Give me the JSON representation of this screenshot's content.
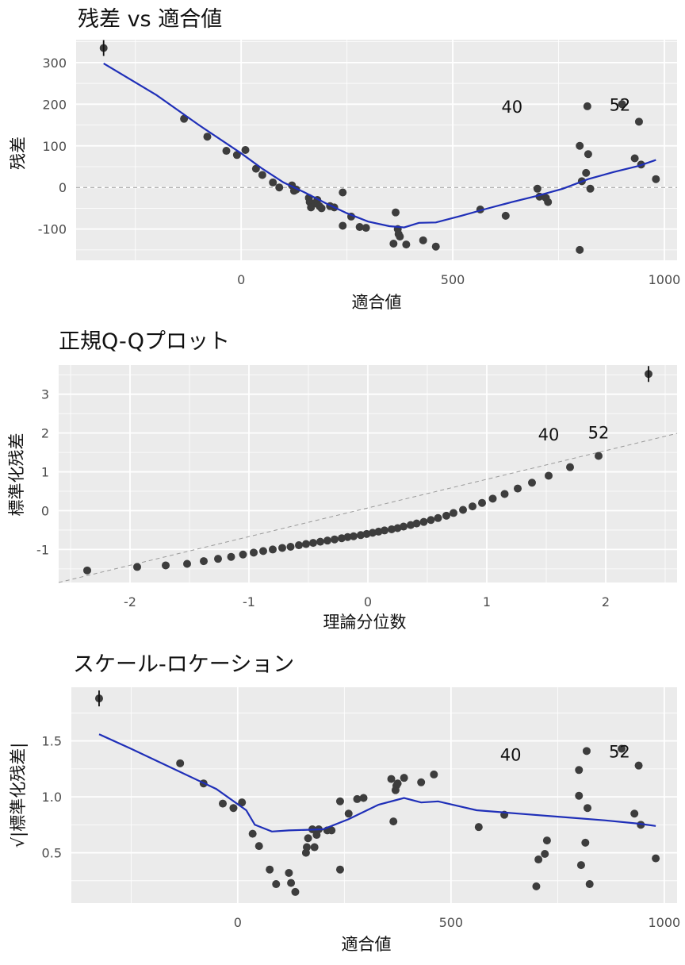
{
  "colors": {
    "panel_background": "#ebebeb",
    "gridline": "#ffffff",
    "point": "#3d3d3d",
    "smooth_line": "#1f2fb8",
    "reference_line": "#9a9a9a",
    "text": "#111111",
    "tick_text": "#4d4d4d"
  },
  "chart_data": [
    {
      "id": "residuals-vs-fitted",
      "type": "scatter",
      "title": "残差 vs 適合値",
      "xlabel": "適合値",
      "ylabel": "残差",
      "xlim": [
        -390,
        1030
      ],
      "ylim": [
        -175,
        355
      ],
      "xticks": [
        0,
        500,
        1000
      ],
      "yticks": [
        -100,
        0,
        100,
        200,
        300
      ],
      "grid": true,
      "reference_line": {
        "type": "horizontal",
        "y": 0,
        "style": "dashed"
      },
      "points": [
        [
          -325,
          335
        ],
        [
          -135,
          165
        ],
        [
          -80,
          122
        ],
        [
          -35,
          88
        ],
        [
          -10,
          78
        ],
        [
          10,
          90
        ],
        [
          35,
          45
        ],
        [
          50,
          30
        ],
        [
          75,
          12
        ],
        [
          90,
          0
        ],
        [
          120,
          5
        ],
        [
          125,
          -8
        ],
        [
          130,
          -5
        ],
        [
          160,
          -25
        ],
        [
          162,
          -35
        ],
        [
          165,
          -48
        ],
        [
          175,
          -38
        ],
        [
          180,
          -30
        ],
        [
          185,
          -45
        ],
        [
          190,
          -50
        ],
        [
          210,
          -45
        ],
        [
          220,
          -48
        ],
        [
          240,
          -12
        ],
        [
          240,
          -92
        ],
        [
          260,
          -70
        ],
        [
          280,
          -95
        ],
        [
          295,
          -97
        ],
        [
          360,
          -135
        ],
        [
          365,
          -60
        ],
        [
          370,
          -100
        ],
        [
          372,
          -112
        ],
        [
          375,
          -118
        ],
        [
          390,
          -137
        ],
        [
          430,
          -127
        ],
        [
          460,
          -142
        ],
        [
          565,
          -53
        ],
        [
          625,
          -68
        ],
        [
          700,
          -3
        ],
        [
          705,
          -22
        ],
        [
          720,
          -25
        ],
        [
          725,
          -35
        ],
        [
          800,
          100
        ],
        [
          800,
          -150
        ],
        [
          805,
          15
        ],
        [
          815,
          35
        ],
        [
          818,
          195
        ],
        [
          820,
          80
        ],
        [
          825,
          -3
        ],
        [
          900,
          200
        ],
        [
          930,
          70
        ],
        [
          940,
          158
        ],
        [
          945,
          55
        ],
        [
          980,
          20
        ]
      ],
      "smooth_line": [
        [
          -325,
          298
        ],
        [
          -200,
          222
        ],
        [
          -100,
          150
        ],
        [
          0,
          82
        ],
        [
          50,
          45
        ],
        [
          100,
          12
        ],
        [
          150,
          -12
        ],
        [
          200,
          -38
        ],
        [
          250,
          -62
        ],
        [
          300,
          -82
        ],
        [
          350,
          -93
        ],
        [
          385,
          -96
        ],
        [
          420,
          -85
        ],
        [
          460,
          -84
        ],
        [
          520,
          -68
        ],
        [
          580,
          -51
        ],
        [
          640,
          -35
        ],
        [
          700,
          -20
        ],
        [
          760,
          -3
        ],
        [
          820,
          20
        ],
        [
          880,
          37
        ],
        [
          940,
          52
        ],
        [
          980,
          66
        ]
      ],
      "annotations": [
        {
          "label": "40",
          "x": 640,
          "y": 195
        },
        {
          "label": "52",
          "x": 895,
          "y": 200
        },
        {
          "label": "",
          "x": -325,
          "y": 335
        }
      ]
    },
    {
      "id": "normal-qq",
      "type": "scatter",
      "title": "正規Q-Qプロット",
      "xlabel": "理論分位数",
      "ylabel": "標準化残差",
      "xlim": [
        -2.6,
        2.6
      ],
      "ylim": [
        -1.85,
        3.75
      ],
      "xticks": [
        -2,
        -1,
        0,
        1,
        2
      ],
      "yticks": [
        -1,
        0,
        1,
        2,
        3
      ],
      "grid": true,
      "reference_line": {
        "type": "diagonal",
        "points": [
          [
            -2.6,
            -1.85
          ],
          [
            2.6,
            1.99
          ]
        ],
        "style": "dashed"
      },
      "points": [
        [
          -2.36,
          -1.54
        ],
        [
          -1.94,
          -1.45
        ],
        [
          -1.7,
          -1.41
        ],
        [
          -1.52,
          -1.37
        ],
        [
          -1.38,
          -1.3
        ],
        [
          -1.26,
          -1.24
        ],
        [
          -1.15,
          -1.19
        ],
        [
          -1.05,
          -1.13
        ],
        [
          -0.96,
          -1.08
        ],
        [
          -0.88,
          -1.04
        ],
        [
          -0.8,
          -1.0
        ],
        [
          -0.72,
          -0.96
        ],
        [
          -0.65,
          -0.93
        ],
        [
          -0.58,
          -0.89
        ],
        [
          -0.52,
          -0.86
        ],
        [
          -0.46,
          -0.83
        ],
        [
          -0.4,
          -0.8
        ],
        [
          -0.34,
          -0.77
        ],
        [
          -0.28,
          -0.74
        ],
        [
          -0.22,
          -0.71
        ],
        [
          -0.17,
          -0.68
        ],
        [
          -0.12,
          -0.66
        ],
        [
          -0.06,
          -0.63
        ],
        [
          -0.01,
          -0.6
        ],
        [
          0.04,
          -0.57
        ],
        [
          0.09,
          -0.54
        ],
        [
          0.14,
          -0.51
        ],
        [
          0.2,
          -0.48
        ],
        [
          0.25,
          -0.45
        ],
        [
          0.3,
          -0.41
        ],
        [
          0.36,
          -0.37
        ],
        [
          0.41,
          -0.33
        ],
        [
          0.47,
          -0.29
        ],
        [
          0.53,
          -0.24
        ],
        [
          0.59,
          -0.19
        ],
        [
          0.66,
          -0.13
        ],
        [
          0.72,
          -0.06
        ],
        [
          0.8,
          0.02
        ],
        [
          0.88,
          0.11
        ],
        [
          0.96,
          0.2
        ],
        [
          1.05,
          0.31
        ],
        [
          1.15,
          0.43
        ],
        [
          1.26,
          0.57
        ],
        [
          1.38,
          0.72
        ],
        [
          1.52,
          0.9
        ],
        [
          1.7,
          1.12
        ],
        [
          1.94,
          1.41
        ],
        [
          2.36,
          3.52
        ]
      ],
      "annotations": [
        {
          "label": "40",
          "x": 1.52,
          "y": 1.97
        },
        {
          "label": "52",
          "x": 1.94,
          "y": 2.02
        },
        {
          "label": "",
          "x": 2.36,
          "y": 3.52
        }
      ]
    },
    {
      "id": "scale-location",
      "type": "scatter",
      "title": "スケール-ロケーション",
      "xlabel": "適合値",
      "ylabel": "√|標準化残差|",
      "xlim": [
        -390,
        1030
      ],
      "ylim": [
        0.05,
        1.98
      ],
      "xticks": [
        0,
        500,
        1000
      ],
      "yticks": [
        0.5,
        1.0,
        1.5
      ],
      "grid": true,
      "points": [
        [
          -325,
          1.88
        ],
        [
          -135,
          1.3
        ],
        [
          -80,
          1.12
        ],
        [
          -35,
          0.94
        ],
        [
          -10,
          0.9
        ],
        [
          10,
          0.95
        ],
        [
          35,
          0.67
        ],
        [
          50,
          0.56
        ],
        [
          75,
          0.35
        ],
        [
          90,
          0.22
        ],
        [
          120,
          0.32
        ],
        [
          125,
          0.23
        ],
        [
          135,
          0.15
        ],
        [
          160,
          0.5
        ],
        [
          162,
          0.55
        ],
        [
          165,
          0.63
        ],
        [
          175,
          0.71
        ],
        [
          180,
          0.55
        ],
        [
          185,
          0.66
        ],
        [
          190,
          0.71
        ],
        [
          210,
          0.7
        ],
        [
          220,
          0.7
        ],
        [
          240,
          0.35
        ],
        [
          240,
          0.96
        ],
        [
          260,
          0.85
        ],
        [
          280,
          0.98
        ],
        [
          295,
          0.99
        ],
        [
          360,
          1.16
        ],
        [
          365,
          0.78
        ],
        [
          370,
          1.06
        ],
        [
          372,
          1.1
        ],
        [
          375,
          1.12
        ],
        [
          390,
          1.17
        ],
        [
          430,
          1.13
        ],
        [
          460,
          1.2
        ],
        [
          565,
          0.73
        ],
        [
          625,
          0.84
        ],
        [
          700,
          0.2
        ],
        [
          705,
          0.44
        ],
        [
          720,
          0.49
        ],
        [
          725,
          0.61
        ],
        [
          800,
          1.01
        ],
        [
          800,
          1.24
        ],
        [
          805,
          0.39
        ],
        [
          815,
          0.59
        ],
        [
          818,
          1.41
        ],
        [
          820,
          0.9
        ],
        [
          825,
          0.22
        ],
        [
          900,
          1.43
        ],
        [
          930,
          0.85
        ],
        [
          940,
          1.28
        ],
        [
          945,
          0.75
        ],
        [
          980,
          0.45
        ]
      ],
      "smooth_line": [
        [
          -325,
          1.56
        ],
        [
          -250,
          1.43
        ],
        [
          -150,
          1.25
        ],
        [
          -50,
          1.07
        ],
        [
          20,
          0.88
        ],
        [
          40,
          0.75
        ],
        [
          80,
          0.69
        ],
        [
          120,
          0.7
        ],
        [
          200,
          0.71
        ],
        [
          260,
          0.8
        ],
        [
          330,
          0.93
        ],
        [
          390,
          0.99
        ],
        [
          430,
          0.95
        ],
        [
          470,
          0.96
        ],
        [
          560,
          0.88
        ],
        [
          660,
          0.85
        ],
        [
          760,
          0.82
        ],
        [
          860,
          0.79
        ],
        [
          940,
          0.76
        ],
        [
          980,
          0.74
        ]
      ],
      "annotations": [
        {
          "label": "40",
          "x": 640,
          "y": 1.38
        },
        {
          "label": "52",
          "x": 895,
          "y": 1.41
        },
        {
          "label": "",
          "x": -325,
          "y": 1.88
        }
      ]
    }
  ]
}
